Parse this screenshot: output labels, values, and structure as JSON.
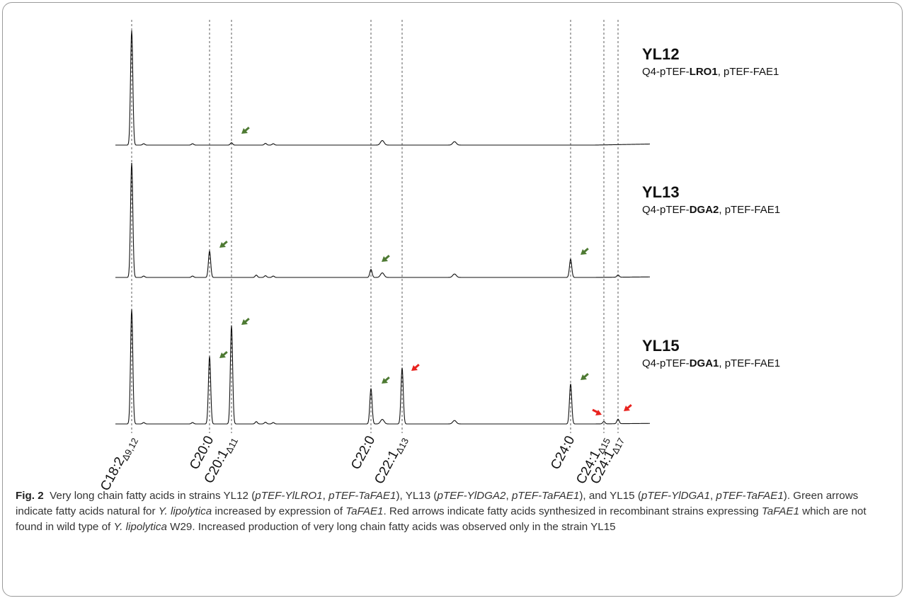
{
  "strains": [
    {
      "title": "YL12",
      "sub_pre": "Q4-pTEF-",
      "sub_bold": "LRO1",
      "sub_post": ", pTEF-FAE1"
    },
    {
      "title": "YL13",
      "sub_pre": "Q4-pTEF-",
      "sub_bold": "DGA2",
      "sub_post": ", pTEF-FAE1"
    },
    {
      "title": "YL15",
      "sub_pre": "Q4-pTEF-",
      "sub_bold": "DGA1",
      "sub_post": ", pTEF-FAE1"
    }
  ],
  "peak_labels": [
    {
      "base": "C18:2",
      "sub": "Δ9,12"
    },
    {
      "base": "C20:0",
      "sub": ""
    },
    {
      "base": "C20:1",
      "sub": "Δ11"
    },
    {
      "base": "C22:0",
      "sub": ""
    },
    {
      "base": "C22:1",
      "sub": "Δ13"
    },
    {
      "base": "C24:0",
      "sub": ""
    },
    {
      "base": "C24:1",
      "sub": "Δ15"
    },
    {
      "base": "C24:1",
      "sub": "Δ17"
    }
  ],
  "colors": {
    "green_arrow": "#4e7a33",
    "red_arrow": "#e8231f",
    "trace": "#111111",
    "guide": "#333333"
  },
  "chart_data": {
    "type": "line",
    "description_units": "relative signal (0-1)",
    "peaks": [
      "C18:2Δ9,12",
      "C20:0",
      "C20:1Δ11",
      "C22:0",
      "C22:1Δ13",
      "C24:0",
      "C24:1Δ15",
      "C24:1Δ17"
    ],
    "series": [
      {
        "name": "YL12",
        "values": [
          1.0,
          0.0,
          0.02,
          0.0,
          0.0,
          0.0,
          0.0,
          0.0
        ],
        "arrows": [
          {
            "peak": "C20:1Δ11",
            "color": "green"
          }
        ]
      },
      {
        "name": "YL13",
        "values": [
          1.0,
          0.23,
          0.0,
          0.07,
          0.0,
          0.16,
          0.0,
          0.02
        ],
        "arrows": [
          {
            "peak": "C20:0",
            "color": "green"
          },
          {
            "peak": "C22:0",
            "color": "green"
          },
          {
            "peak": "C24:0",
            "color": "green"
          }
        ]
      },
      {
        "name": "YL15",
        "values": [
          1.0,
          0.59,
          0.86,
          0.31,
          0.49,
          0.35,
          0.02,
          0.04
        ],
        "arrows": [
          {
            "peak": "C20:0",
            "color": "green"
          },
          {
            "peak": "C20:1Δ11",
            "color": "green"
          },
          {
            "peak": "C22:0",
            "color": "green"
          },
          {
            "peak": "C22:1Δ13",
            "color": "red"
          },
          {
            "peak": "C24:0",
            "color": "green"
          },
          {
            "peak": "C24:1Δ15",
            "color": "red"
          },
          {
            "peak": "C24:1Δ17",
            "color": "red"
          }
        ]
      }
    ]
  },
  "caption": {
    "fig": "Fig. 2",
    "t1": "Very long chain fatty acids in strains YL12 (",
    "i1": "pTEF-YlLRO1",
    "t2": ", ",
    "i2": "pTEF-TaFAE1",
    "t3": "), YL13 (",
    "i3": "pTEF-YlDGA2",
    "t4": ", ",
    "i4": "pTEF-TaFAE1",
    "t5": "), and YL15 (",
    "i5": "pTEF-YlDGA1",
    "t6": ", ",
    "i6": "pTEF-TaFAE1",
    "t7": "). Green arrows indicate fatty acids natural for ",
    "i7": "Y. lipolytica",
    "t8": " increased by expression of ",
    "i8": "TaFAE1",
    "t9": ". Red arrows indicate fatty acids synthesized in recombinant strains expressing ",
    "i9": "TaFAE1",
    "t10": " which are not found in wild type of ",
    "i10": "Y. lipolytica",
    "t11": " W29. Increased production of very long chain fatty acids was observed only in the strain YL15"
  }
}
